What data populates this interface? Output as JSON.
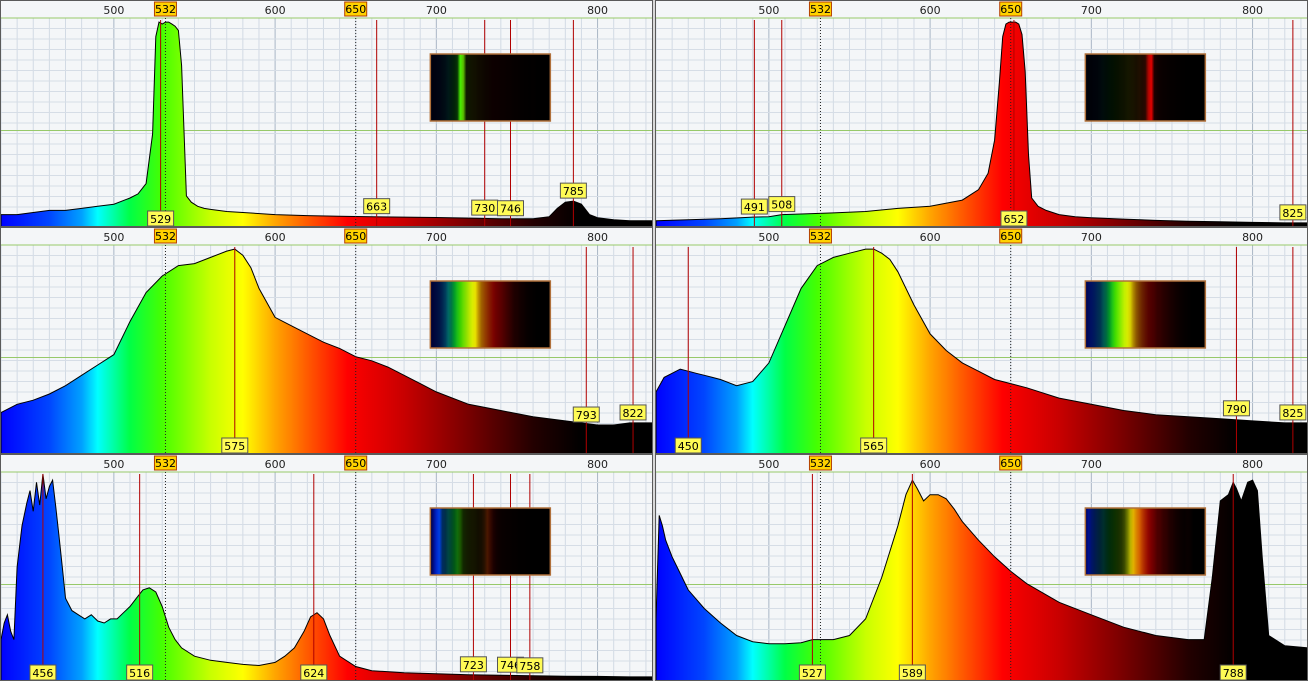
{
  "chart_data": [
    {
      "type": "area",
      "xlim": [
        430,
        835
      ],
      "x_ticks": [
        500,
        600,
        700,
        800
      ],
      "reference_lines": [
        532,
        650
      ],
      "peak_labels": [
        529,
        663,
        730,
        746,
        785
      ],
      "x": [
        430,
        440,
        450,
        460,
        470,
        480,
        490,
        500,
        510,
        515,
        520,
        524,
        526,
        528,
        530,
        532,
        534,
        536,
        538,
        540,
        542,
        545,
        548,
        552,
        556,
        560,
        570,
        580,
        600,
        620,
        640,
        660,
        680,
        700,
        720,
        740,
        760,
        770,
        775,
        780,
        785,
        790,
        795,
        800,
        810,
        820,
        830,
        835
      ],
      "values": [
        6,
        6,
        7,
        8,
        8,
        9,
        10,
        11,
        14,
        16,
        21,
        45,
        92,
        99,
        98,
        99,
        99,
        98,
        97,
        95,
        78,
        15,
        12,
        10,
        9,
        8.5,
        7.5,
        7,
        6,
        5.5,
        5.2,
        5,
        4.8,
        4.6,
        4.3,
        4,
        4,
        5,
        9,
        12,
        12.5,
        11,
        6,
        4.5,
        3.5,
        3,
        3,
        3
      ]
    },
    {
      "type": "area",
      "xlim": [
        430,
        835
      ],
      "x_ticks": [
        500,
        600,
        700,
        800
      ],
      "reference_lines": [
        532,
        650
      ],
      "peak_labels": [
        491,
        508,
        652,
        825
      ],
      "x": [
        430,
        450,
        470,
        490,
        500,
        508,
        520,
        540,
        560,
        580,
        600,
        620,
        630,
        636,
        640,
        643,
        645,
        647,
        649,
        651,
        653,
        655,
        657,
        659,
        661,
        663,
        667,
        672,
        680,
        690,
        700,
        720,
        740,
        760,
        780,
        800,
        820,
        835
      ],
      "values": [
        3,
        3.5,
        4,
        4.8,
        5,
        6,
        6.3,
        6.8,
        7.5,
        9,
        10,
        13,
        18,
        26,
        42,
        70,
        92,
        98,
        99,
        99,
        99,
        98,
        93,
        75,
        35,
        14,
        10,
        8,
        6,
        5,
        4.5,
        3.8,
        3.2,
        2.8,
        2.5,
        2.2,
        2,
        2
      ]
    },
    {
      "type": "area",
      "xlim": [
        430,
        835
      ],
      "x_ticks": [
        500,
        600,
        700,
        800
      ],
      "reference_lines": [
        532,
        650
      ],
      "peak_labels": [
        575,
        793,
        822
      ],
      "x": [
        430,
        440,
        450,
        460,
        470,
        480,
        490,
        500,
        510,
        520,
        530,
        540,
        550,
        560,
        570,
        575,
        580,
        585,
        590,
        600,
        610,
        620,
        630,
        640,
        650,
        660,
        670,
        680,
        690,
        700,
        720,
        740,
        760,
        780,
        800,
        810,
        820,
        830,
        835
      ],
      "values": [
        20,
        24,
        26,
        29,
        33,
        38,
        43,
        48,
        64,
        78,
        86,
        91,
        92,
        95,
        98,
        99,
        96,
        90,
        80,
        66,
        62,
        58,
        54,
        51,
        47,
        45,
        42,
        38,
        34,
        30,
        24,
        21,
        18,
        16,
        14,
        14,
        15,
        15,
        15
      ]
    },
    {
      "type": "area",
      "xlim": [
        430,
        835
      ],
      "x_ticks": [
        500,
        600,
        700,
        800
      ],
      "reference_lines": [
        532,
        650
      ],
      "peak_labels": [
        450,
        565,
        790,
        825
      ],
      "x": [
        430,
        435,
        440,
        445,
        450,
        455,
        460,
        465,
        470,
        480,
        490,
        500,
        510,
        520,
        530,
        540,
        550,
        560,
        565,
        570,
        575,
        580,
        590,
        600,
        610,
        620,
        630,
        640,
        650,
        660,
        680,
        700,
        720,
        740,
        760,
        780,
        800,
        820,
        835
      ],
      "values": [
        30,
        37,
        39,
        41,
        40,
        39,
        38,
        37,
        36,
        33,
        35,
        44,
        62,
        80,
        91,
        95,
        97,
        99,
        99,
        97,
        94,
        88,
        72,
        58,
        50,
        44,
        40,
        36,
        34,
        32,
        27,
        24,
        21,
        19,
        18,
        17,
        16,
        15,
        15
      ]
    },
    {
      "type": "area",
      "xlim": [
        430,
        835
      ],
      "x_ticks": [
        500,
        600,
        700,
        800
      ],
      "reference_lines": [
        532,
        650
      ],
      "peak_labels": [
        456,
        516,
        624,
        723,
        746,
        758
      ],
      "x": [
        430,
        432,
        434,
        436,
        438,
        440,
        443,
        446,
        448,
        450,
        452,
        454,
        456,
        458,
        460,
        462,
        464,
        466,
        468,
        470,
        474,
        478,
        482,
        486,
        490,
        494,
        498,
        502,
        506,
        510,
        514,
        518,
        522,
        526,
        530,
        534,
        538,
        542,
        550,
        560,
        570,
        580,
        590,
        600,
        606,
        612,
        618,
        622,
        626,
        630,
        634,
        640,
        650,
        660,
        680,
        700,
        720,
        740,
        760,
        780,
        800,
        820,
        835
      ],
      "values": [
        20,
        28,
        32,
        24,
        20,
        55,
        75,
        86,
        92,
        82,
        96,
        85,
        100,
        88,
        94,
        97,
        84,
        70,
        55,
        40,
        34,
        32,
        30,
        32,
        29,
        28,
        30,
        30,
        33,
        36,
        40,
        44,
        45,
        43,
        36,
        26,
        20,
        16,
        12,
        10,
        9,
        8,
        7.5,
        9,
        12,
        16,
        24,
        31,
        33,
        30,
        22,
        12,
        7,
        5,
        4,
        3.5,
        3,
        2.8,
        2.5,
        2.3,
        2.2,
        2,
        2
      ]
    },
    {
      "type": "area",
      "xlim": [
        430,
        835
      ],
      "x_ticks": [
        500,
        600,
        700,
        800
      ],
      "reference_lines": [
        532,
        650
      ],
      "peak_labels": [
        527,
        589,
        788
      ],
      "x": [
        430,
        432,
        434,
        436,
        438,
        440,
        445,
        450,
        460,
        470,
        480,
        490,
        500,
        510,
        520,
        527,
        530,
        540,
        550,
        560,
        570,
        580,
        585,
        589,
        592,
        596,
        600,
        605,
        610,
        615,
        620,
        630,
        640,
        650,
        660,
        680,
        700,
        720,
        740,
        760,
        770,
        775,
        780,
        785,
        788,
        790,
        793,
        797,
        800,
        803,
        806,
        810,
        820,
        835
      ],
      "values": [
        30,
        80,
        75,
        68,
        64,
        60,
        52,
        44,
        35,
        28,
        22,
        19,
        18,
        18,
        18.5,
        20,
        20,
        20,
        22,
        30,
        50,
        75,
        90,
        97,
        93,
        87,
        90,
        90,
        88,
        83,
        77,
        68,
        60,
        53,
        47,
        38,
        32,
        26,
        22,
        20,
        20,
        50,
        87,
        90,
        96,
        93,
        87,
        96,
        97,
        92,
        60,
        22,
        17,
        16
      ]
    }
  ]
}
